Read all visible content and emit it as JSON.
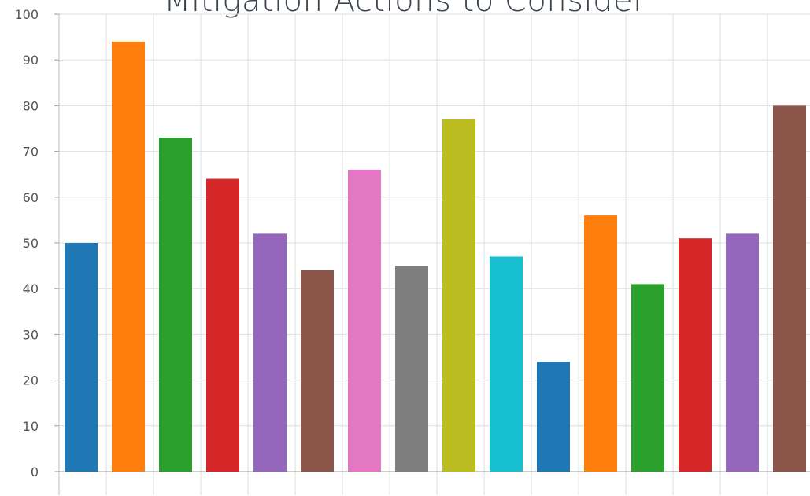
{
  "chart_data": {
    "type": "bar",
    "title": "Mitigation Actions to Consider",
    "xlabel": "",
    "ylabel": "",
    "ylim": [
      0,
      100
    ],
    "yticks": [
      "0",
      "10",
      "20",
      "30",
      "40",
      "50",
      "60",
      "70",
      "80",
      "90",
      "100"
    ],
    "grid": true,
    "legend": "none",
    "values": [
      50,
      94,
      73,
      64,
      52,
      44,
      66,
      45,
      77,
      47,
      24,
      56,
      41,
      51,
      52,
      80
    ],
    "colors": [
      "#1f77b4",
      "#ff7f0e",
      "#2ca02c",
      "#d62728",
      "#9467bd",
      "#8c564b",
      "#e377c2",
      "#7f7f7f",
      "#bcbd22",
      "#17becf",
      "#1f77b4",
      "#ff7f0e",
      "#2ca02c",
      "#d62728",
      "#9467bd",
      "#8c564b"
    ]
  }
}
